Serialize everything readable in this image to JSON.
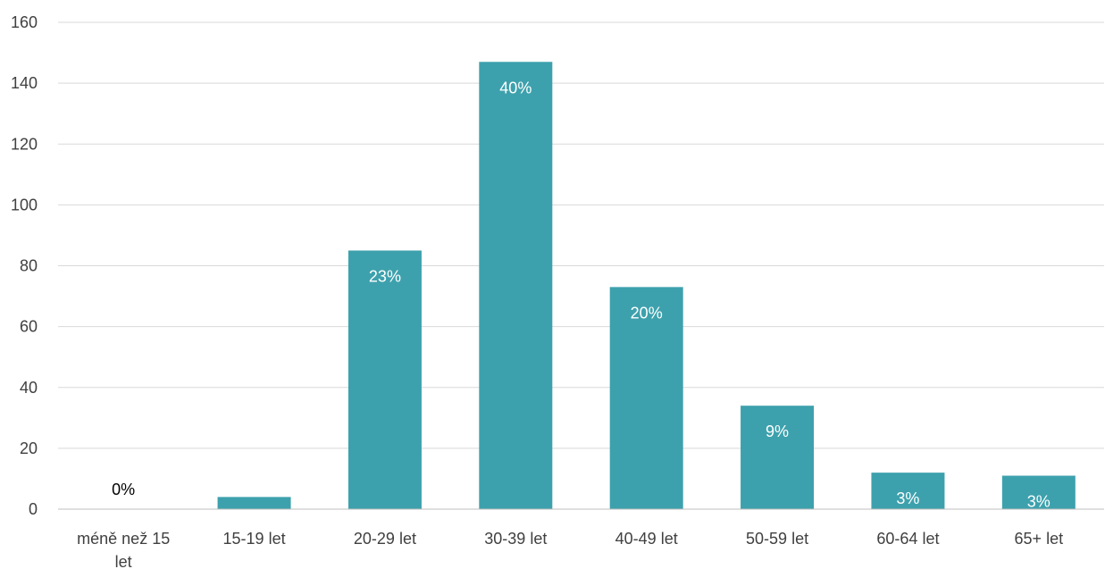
{
  "chart_data": {
    "type": "bar",
    "categories": [
      "méně než 15 let",
      "15-19 let",
      "20-29 let",
      "30-39 let",
      "40-49 let",
      "50-59 let",
      "60-64 let",
      "65+ let"
    ],
    "category_label_lines": [
      [
        "méně než 15",
        "let"
      ],
      [
        "15-19 let"
      ],
      [
        "20-29 let"
      ],
      [
        "30-39 let"
      ],
      [
        "40-49 let"
      ],
      [
        "50-59 let"
      ],
      [
        "60-64 let"
      ],
      [
        "65+ let"
      ]
    ],
    "values": [
      0,
      4,
      85,
      147,
      73,
      34,
      12,
      11
    ],
    "data_labels": [
      "0%",
      "",
      "23%",
      "40%",
      "20%",
      "9%",
      "3%",
      "3%"
    ],
    "title": "",
    "xlabel": "",
    "ylabel": "",
    "ylim": [
      0,
      160
    ],
    "yticks": [
      "0",
      "20",
      "40",
      "60",
      "80",
      "100",
      "120",
      "140",
      "160"
    ],
    "grid": true,
    "legend": "none",
    "colors": {
      "bar": "#3DA1AD",
      "grid": "#D9D9D9",
      "axis": "#BFBFBF",
      "tick_text": "#404040",
      "label_on_bar": "#FFFFFF",
      "label_outside": "#000000"
    }
  }
}
